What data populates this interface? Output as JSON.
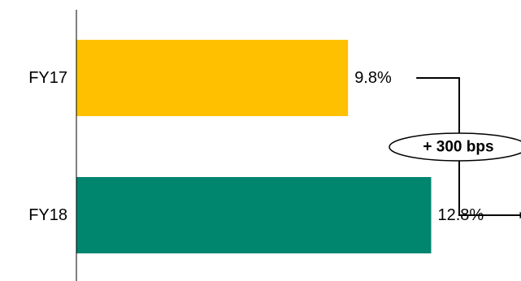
{
  "chart_data": {
    "type": "bar",
    "orientation": "horizontal",
    "categories": [
      "FY17",
      "FY18"
    ],
    "values": [
      9.8,
      12.8
    ],
    "data_labels": [
      "9.8%",
      "12.8%"
    ],
    "bar_colors": [
      "#FFC000",
      "#00856F"
    ],
    "xlim": [
      0,
      17.8
    ],
    "grid": false,
    "legend": "none",
    "annotation": {
      "text": "+ 300 bps",
      "from": "FY17",
      "to": "FY18"
    }
  }
}
